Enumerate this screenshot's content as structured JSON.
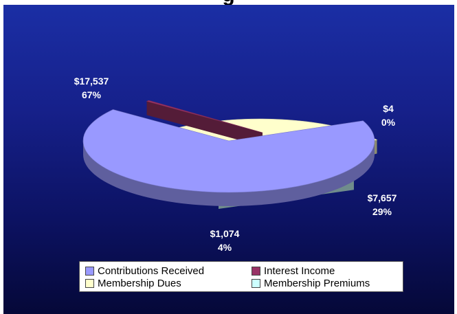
{
  "title": "g",
  "chart_data": {
    "type": "pie",
    "style": "3d-exploded",
    "slices": [
      {
        "name": "Contributions Received",
        "value": 17537,
        "percent": 67,
        "value_label": "$17,537",
        "percent_label": "67%",
        "color": "#9999ff"
      },
      {
        "name": "Interest Income",
        "value": 4,
        "percent": 0,
        "value_label": "$4",
        "percent_label": "0%",
        "color": "#993366"
      },
      {
        "name": "Membership Dues",
        "value": 7657,
        "percent": 29,
        "value_label": "$7,657",
        "percent_label": "29%",
        "color": "#ffffcc"
      },
      {
        "name": "Membership Premiums",
        "value": 1074,
        "percent": 4,
        "value_label": "$1,074",
        "percent_label": "4%",
        "color": "#ccffff"
      }
    ],
    "legend": {
      "position": "bottom",
      "entries": [
        "Contributions Received",
        "Interest Income",
        "Membership Dues",
        "Membership Premiums"
      ]
    },
    "background": {
      "top": "#1b2fa6",
      "bottom": "#050838"
    }
  }
}
